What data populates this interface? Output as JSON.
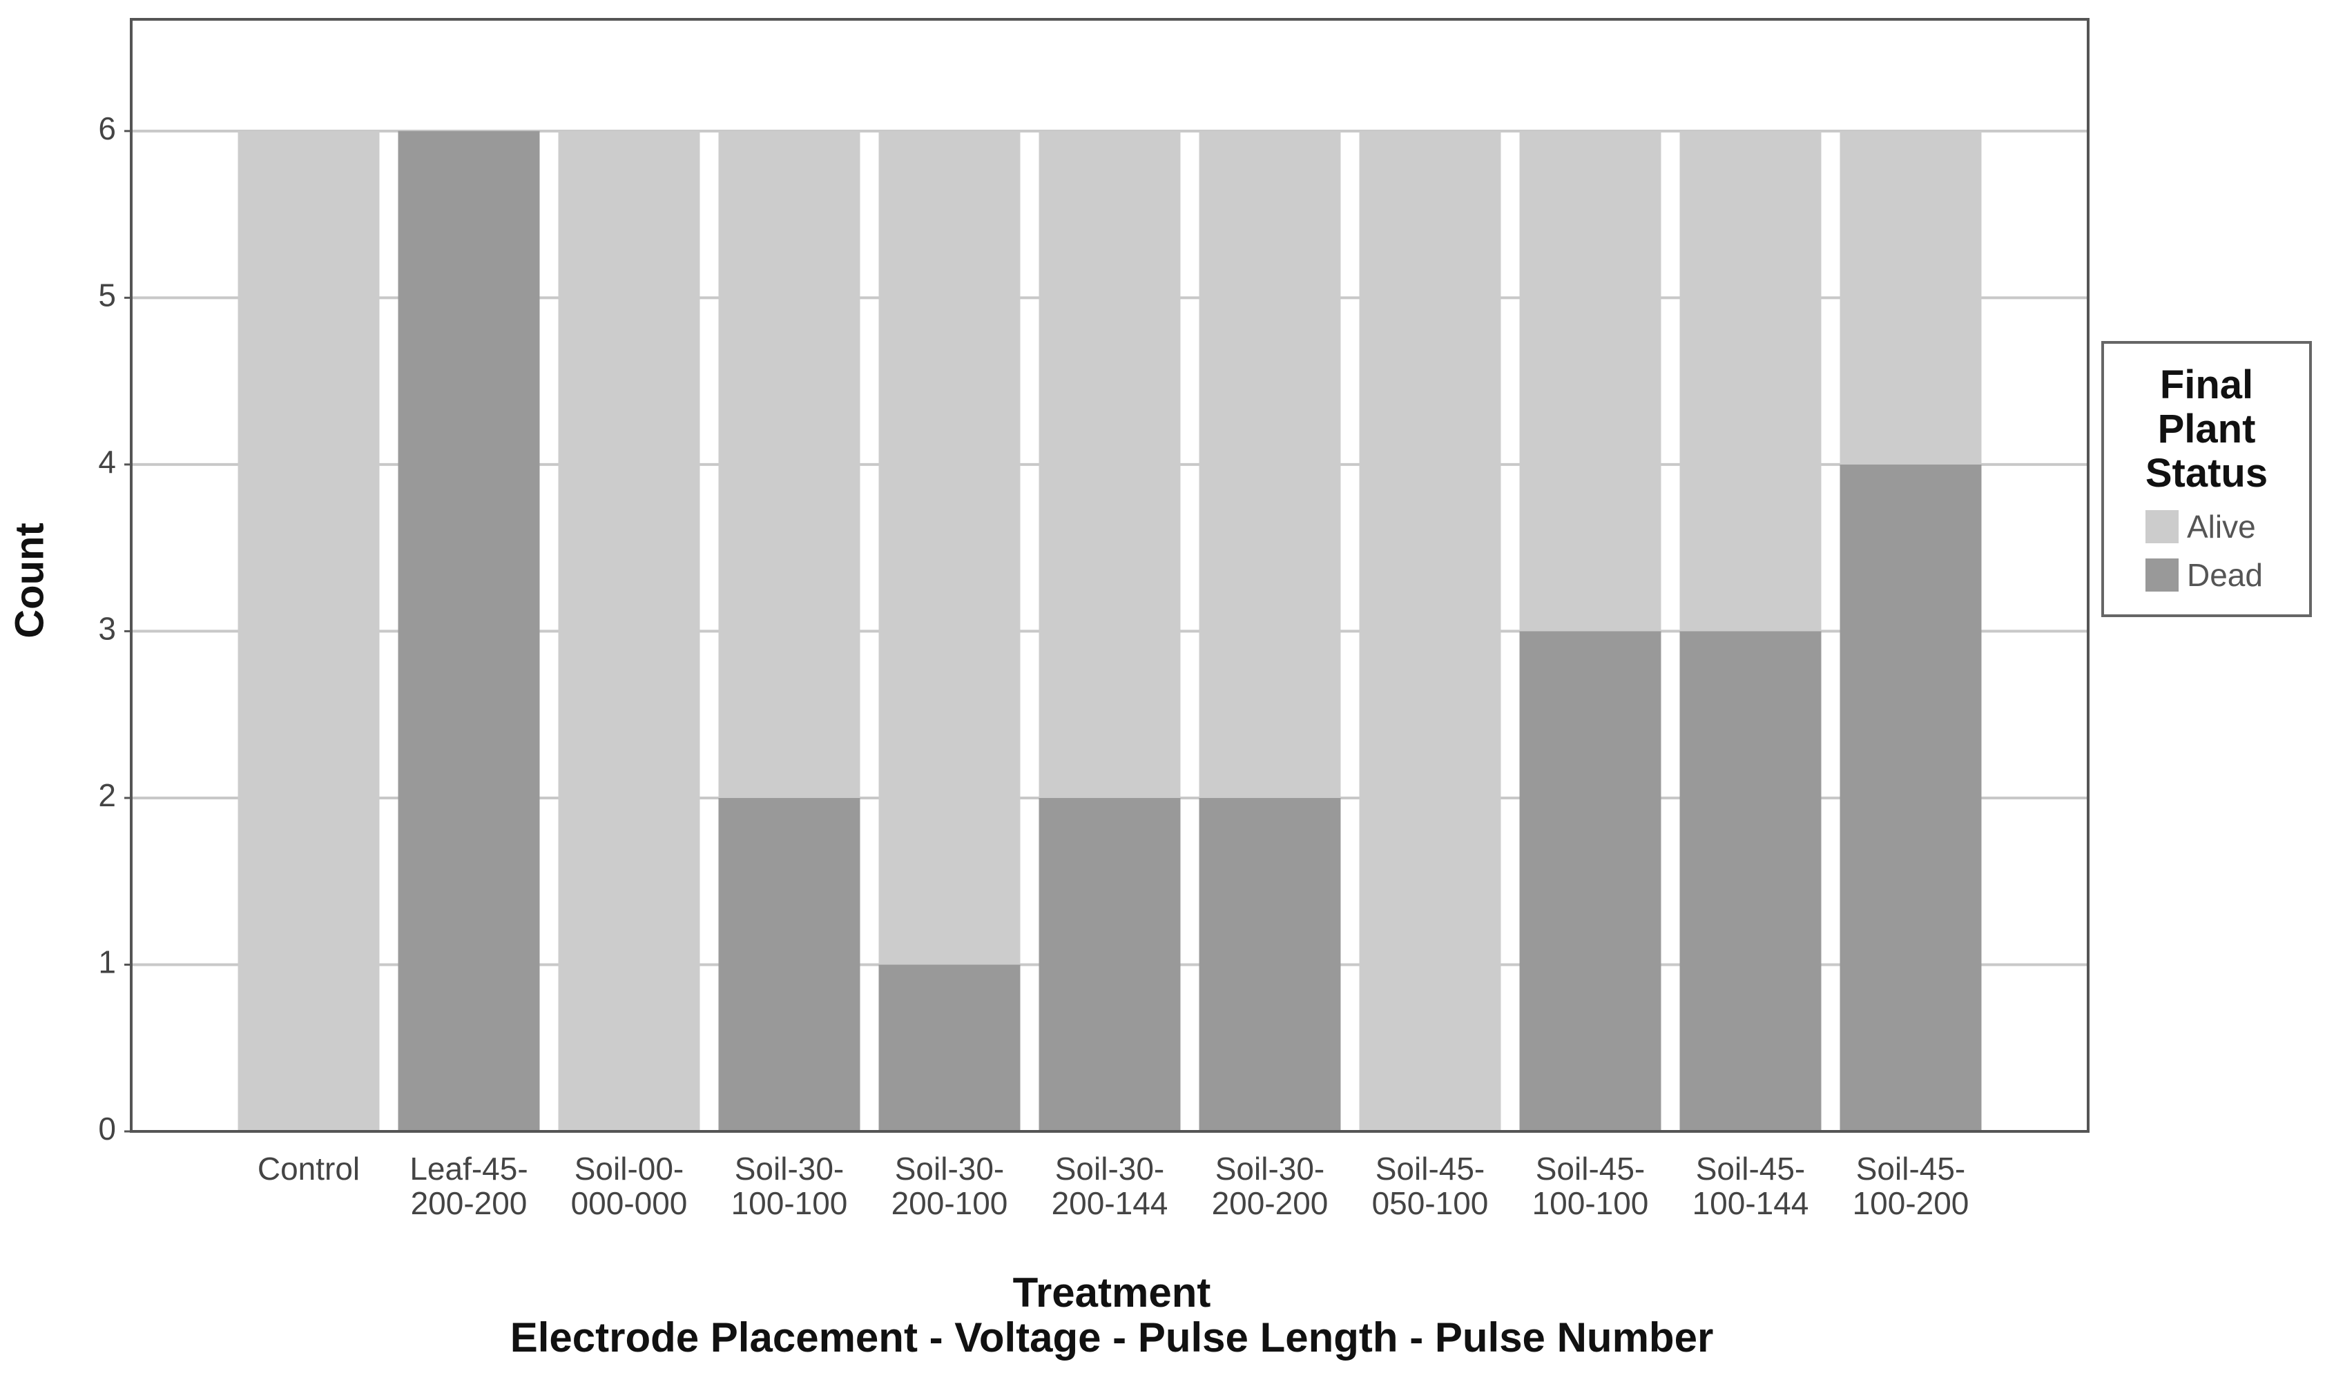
{
  "chart_data": {
    "type": "stacked_bar",
    "ylabel": "Count",
    "xlabel": "Treatment",
    "xlabel_sub": "Electrode Placement - Voltage - Pulse Length - Pulse Number",
    "legend_title": "Final Plant Status",
    "legend_position": "right",
    "categories": [
      "Control",
      "Leaf-45-200-200",
      "Soil-00-000-000",
      "Soil-30-100-100",
      "Soil-30-200-100",
      "Soil-30-200-144",
      "Soil-30-200-200",
      "Soil-45-050-100",
      "Soil-45-100-100",
      "Soil-45-100-144",
      "Soil-45-100-200"
    ],
    "series": [
      {
        "name": "Alive",
        "color": "#cccccc",
        "values": [
          6,
          0,
          6,
          4,
          5,
          4,
          4,
          6,
          3,
          3,
          2
        ]
      },
      {
        "name": "Dead",
        "color": "#999999",
        "values": [
          0,
          6,
          0,
          2,
          1,
          2,
          2,
          0,
          3,
          3,
          4
        ]
      }
    ],
    "ylim": [
      0,
      6.67
    ],
    "yticks": [
      0,
      1,
      2,
      3,
      4,
      5,
      6
    ],
    "grid": true
  }
}
